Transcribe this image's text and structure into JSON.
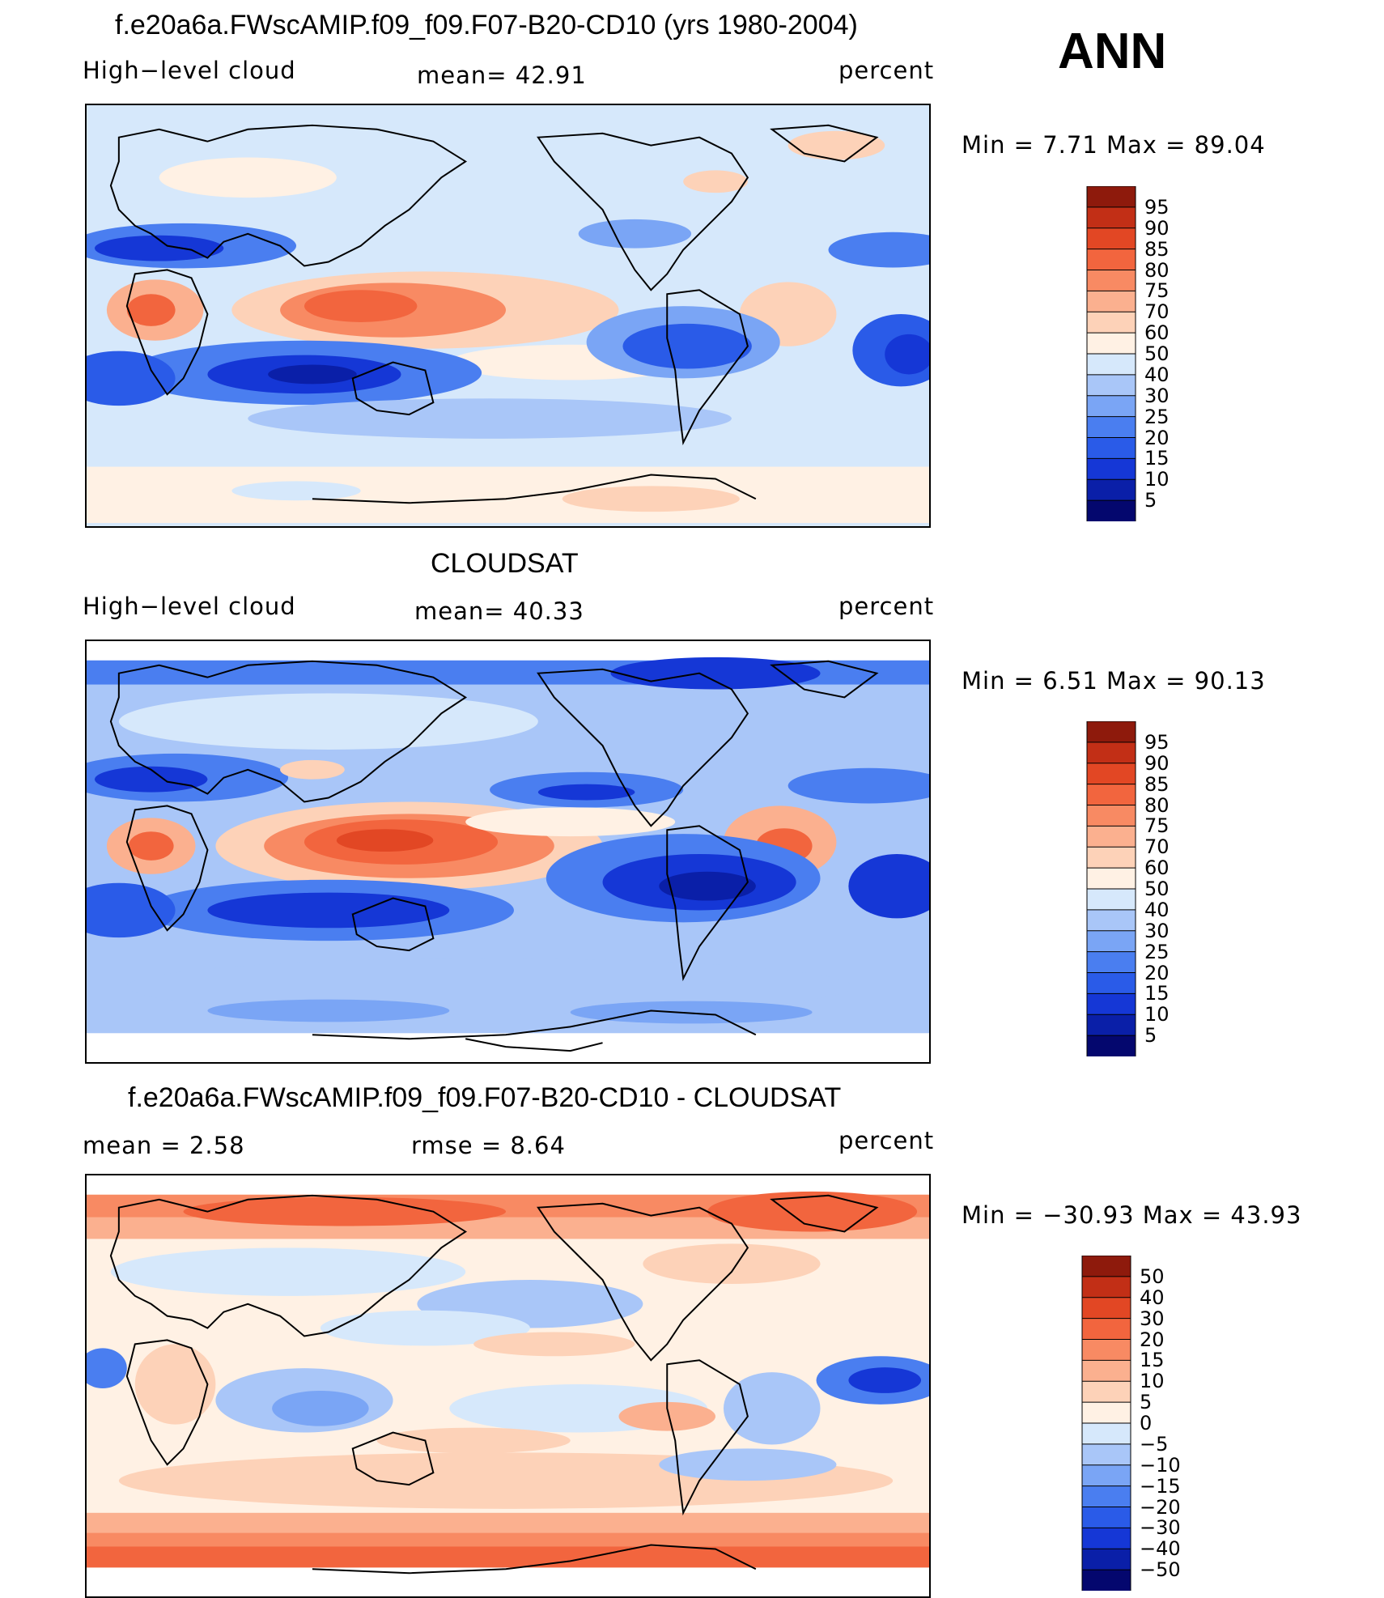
{
  "season": "ANN",
  "colors": {
    "ramp_abs": [
      "#04076e",
      "#0a1fa8",
      "#1537d6",
      "#2a5be8",
      "#4a7ef0",
      "#7aa5f5",
      "#a9c6f8",
      "#d6e8fb",
      "#fff1e4",
      "#fdd2b8",
      "#fbb08f",
      "#f88a63",
      "#f2653e",
      "#e24724",
      "#c22f16",
      "#8e1a0c"
    ],
    "ramp_diff": [
      "#04076e",
      "#0a1fa8",
      "#1537d6",
      "#2a5be8",
      "#4a7ef0",
      "#7aa5f5",
      "#a9c6f8",
      "#d6e8fb",
      "#fff1e4",
      "#fdd2b8",
      "#fbb08f",
      "#f88a63",
      "#f2653e",
      "#e24724",
      "#c22f16",
      "#8e1a0c"
    ]
  },
  "panels": [
    {
      "title": "f.e20a6a.FWscAMIP.f09_f09.F07-B20-CD10 (yrs 1980-2004)",
      "left_label": "High−level cloud",
      "mean_text": "mean=   42.91",
      "units": "percent",
      "minmax_text": "Min =    7.71  Max =   89.04"
    },
    {
      "title": "CLOUDSAT",
      "left_label": "High−level cloud",
      "mean_text": "mean=   40.33",
      "units": "percent",
      "minmax_text": "Min =    6.51  Max =   90.13"
    },
    {
      "title": "f.e20a6a.FWscAMIP.f09_f09.F07-B20-CD10 - CLOUDSAT",
      "left_label": "mean =     2.58",
      "mean_text": "rmse =     8.64",
      "units": "percent",
      "minmax_text": "Min = −30.93  Max =   43.93"
    }
  ],
  "chart_data": [
    {
      "type": "heatmap",
      "title": "f.e20a6a.FWscAMIP.f09_f09.F07-B20-CD10 (yrs 1980-2004)",
      "subtitle": "High−level cloud",
      "units": "percent",
      "mean": 42.91,
      "min": 7.71,
      "max": 89.04,
      "colorbar_levels": [
        "95",
        "90",
        "85",
        "80",
        "75",
        "70",
        "60",
        "50",
        "40",
        "30",
        "25",
        "20",
        "15",
        "10",
        "5"
      ]
    },
    {
      "type": "heatmap",
      "title": "CLOUDSAT",
      "subtitle": "High−level cloud",
      "units": "percent",
      "mean": 40.33,
      "min": 6.51,
      "max": 90.13,
      "colorbar_levels": [
        "95",
        "90",
        "85",
        "80",
        "75",
        "70",
        "60",
        "50",
        "40",
        "30",
        "25",
        "20",
        "15",
        "10",
        "5"
      ]
    },
    {
      "type": "heatmap",
      "title": "f.e20a6a.FWscAMIP.f09_f09.F07-B20-CD10 - CLOUDSAT",
      "units": "percent",
      "mean": 2.58,
      "rmse": 8.64,
      "min": -30.93,
      "max": 43.93,
      "colorbar_levels": [
        "50",
        "40",
        "30",
        "20",
        "15",
        "10",
        "5",
        "0",
        "−5",
        "−10",
        "−15",
        "−20",
        "−30",
        "−40",
        "−50"
      ]
    }
  ]
}
